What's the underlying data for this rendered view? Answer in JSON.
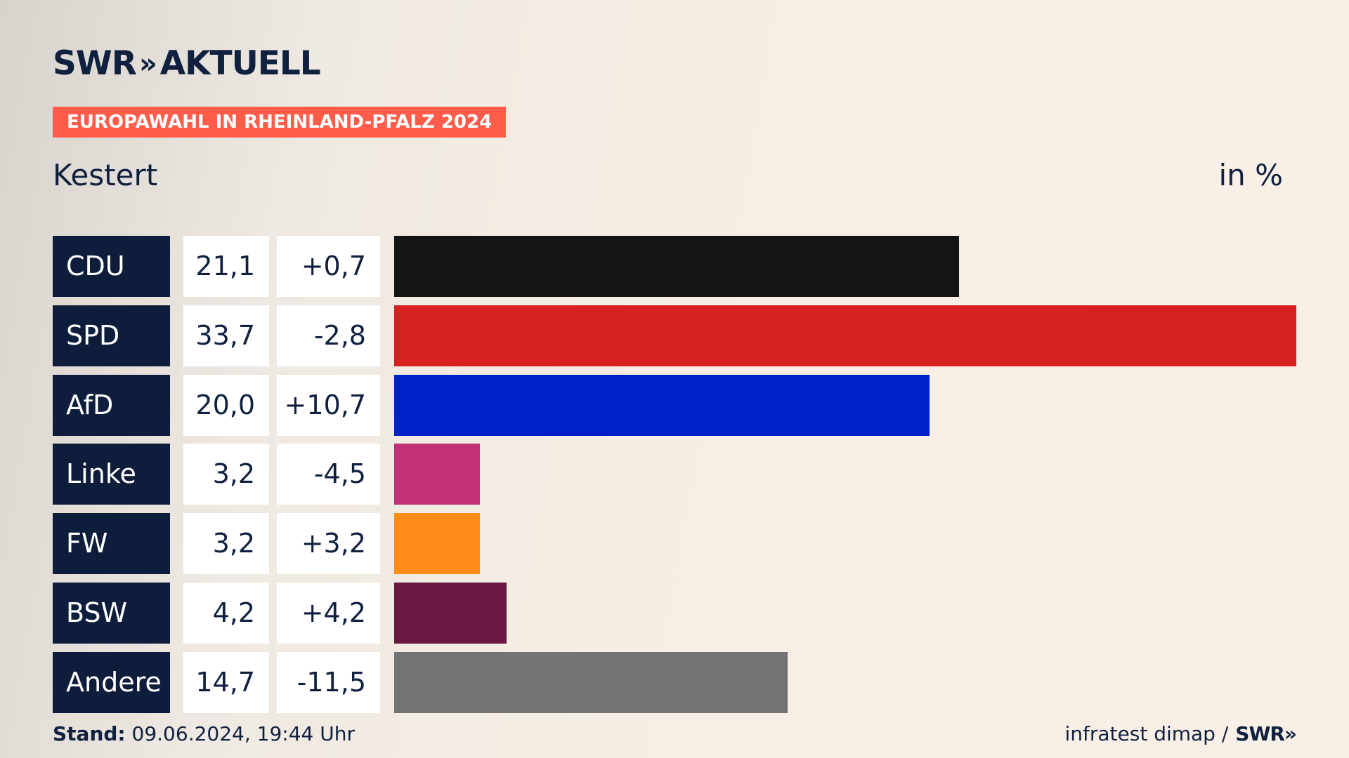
{
  "header": {
    "logo_text": "SWR",
    "logo_chevrons": "»",
    "logo_suffix": "AKTUELL",
    "tag": "EUROPAWAHL IN RHEINLAND-PFALZ 2024",
    "place": "Kestert",
    "unit": "in %"
  },
  "footer": {
    "stand_label": "Stand:",
    "stand_value": "09.06.2024, 19:44 Uhr",
    "source": "infratest dimap /",
    "source_logo": "SWR»"
  },
  "chart_data": {
    "type": "bar",
    "orientation": "horizontal",
    "title": "EUROPAWAHL IN RHEINLAND-PFALZ 2024",
    "subtitle": "Kestert",
    "unit": "in %",
    "categories": [
      "CDU",
      "SPD",
      "AfD",
      "Linke",
      "FW",
      "BSW",
      "Andere"
    ],
    "values": [
      21.1,
      33.7,
      20.0,
      3.2,
      3.2,
      4.2,
      14.7
    ],
    "value_labels": [
      "21,1",
      "33,7",
      "20,0",
      "3,2",
      "3,2",
      "4,2",
      "14,7"
    ],
    "diff_labels": [
      "+0,7",
      "-2,8",
      "+10,7",
      "-4,5",
      "+3,2",
      "+4,2",
      "-11,5"
    ],
    "colors": [
      "#141414",
      "#d72020",
      "#0021c8",
      "#c03175",
      "#ff8c14",
      "#6a1840",
      "#737373"
    ],
    "xlim": [
      0,
      33.7
    ],
    "grid": false
  }
}
